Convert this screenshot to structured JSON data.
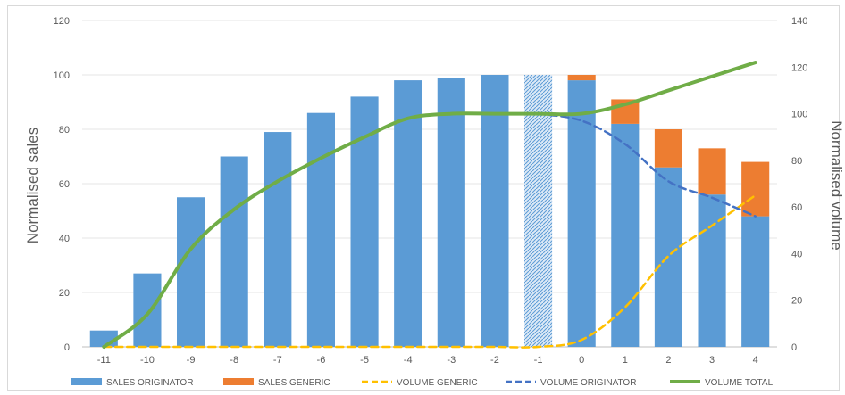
{
  "chart_data": {
    "type": "bar",
    "categories": [
      "-11",
      "-10",
      "-9",
      "-8",
      "-7",
      "-6",
      "-5",
      "-4",
      "-3",
      "-2",
      "-1",
      "0",
      "1",
      "2",
      "3",
      "4"
    ],
    "y_left": {
      "label": "Normalised sales",
      "ylim": [
        0,
        120
      ],
      "ticks": [
        "0",
        "20",
        "40",
        "60",
        "80",
        "100",
        "120"
      ]
    },
    "y_right": {
      "label": "Normalised volume",
      "ylim": [
        0,
        140
      ],
      "ticks": [
        "0",
        "20",
        "40",
        "60",
        "80",
        "100",
        "120",
        "140"
      ]
    },
    "grid": true,
    "legend_position": "bottom",
    "series": [
      {
        "name": "SALES ORIGINATOR",
        "kind": "bar-stacked",
        "axis": "left",
        "color": "#5b9bd5",
        "values": [
          6,
          27,
          55,
          70,
          79,
          86,
          92,
          98,
          99,
          100,
          100,
          98,
          82,
          66,
          56,
          48
        ],
        "hatched_index": 10
      },
      {
        "name": "SALES GENERIC",
        "kind": "bar-stacked",
        "axis": "left",
        "color": "#ed7d31",
        "values": [
          0,
          0,
          0,
          0,
          0,
          0,
          0,
          0,
          0,
          0,
          0,
          2,
          9,
          14,
          17,
          20
        ]
      },
      {
        "name": "VOLUME GENERIC",
        "kind": "line-dashed",
        "axis": "right",
        "color": "#ffc000",
        "values": [
          0,
          0,
          0,
          0,
          0,
          0,
          0,
          0,
          0,
          0,
          0,
          3,
          17,
          39,
          52,
          65
        ]
      },
      {
        "name": "VOLUME ORIGINATOR",
        "kind": "line-dashed",
        "axis": "right",
        "color": "#4472c4",
        "values": [
          null,
          null,
          null,
          null,
          null,
          null,
          null,
          null,
          null,
          null,
          100,
          97,
          87,
          71,
          64,
          56
        ]
      },
      {
        "name": "VOLUME TOTAL",
        "kind": "line",
        "axis": "right",
        "color": "#70ad47",
        "values": [
          0,
          14,
          42,
          59,
          71,
          81,
          90,
          98,
          100,
          100,
          100,
          100,
          104,
          110,
          116,
          122
        ]
      }
    ]
  }
}
